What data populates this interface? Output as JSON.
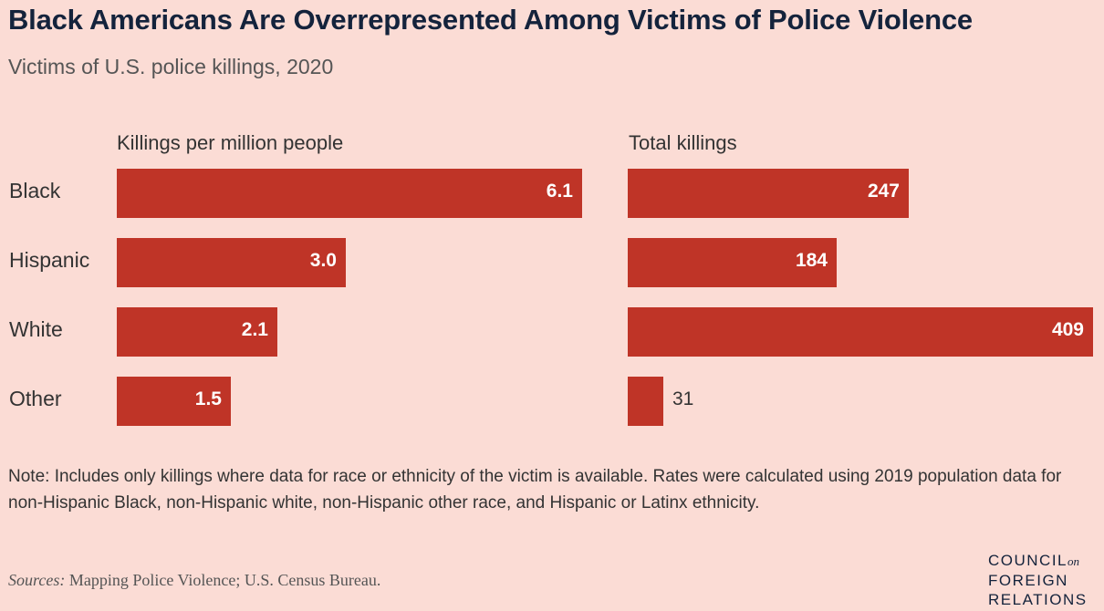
{
  "title": "Black Americans Are Overrepresented Among Victims of Police Violence",
  "subtitle": "Victims of U.S. police killings, 2020",
  "colors": {
    "bar": "#bf3427",
    "background": "#fbdcd5",
    "title": "#14233c"
  },
  "chart_data": [
    {
      "type": "bar",
      "orientation": "horizontal",
      "title": "Killings per million people",
      "categories": [
        "Black",
        "Hispanic",
        "White",
        "Other"
      ],
      "values": [
        6.1,
        3.0,
        2.1,
        1.5
      ],
      "value_labels": [
        "6.1",
        "3.0",
        "2.1",
        "1.5"
      ],
      "xlim": [
        0,
        6.1
      ]
    },
    {
      "type": "bar",
      "orientation": "horizontal",
      "title": "Total killings",
      "categories": [
        "Black",
        "Hispanic",
        "White",
        "Other"
      ],
      "values": [
        247,
        184,
        409,
        31
      ],
      "value_labels": [
        "247",
        "184",
        "409",
        "31"
      ],
      "xlim": [
        0,
        409
      ]
    }
  ],
  "note": "Note: Includes only killings where data for race or ethnicity of the victim is available. Rates were calculated using 2019 population data for non-Hispanic Black, non-Hispanic white, non-Hispanic other race, and Hispanic or Latinx ethnicity.",
  "sources_label": "Sources:",
  "sources_text": " Mapping Police Violence; U.S. Census Bureau.",
  "logo": {
    "line1": "COUNCIL",
    "on": "on",
    "line2": "FOREIGN",
    "line3": "RELATIONS"
  }
}
